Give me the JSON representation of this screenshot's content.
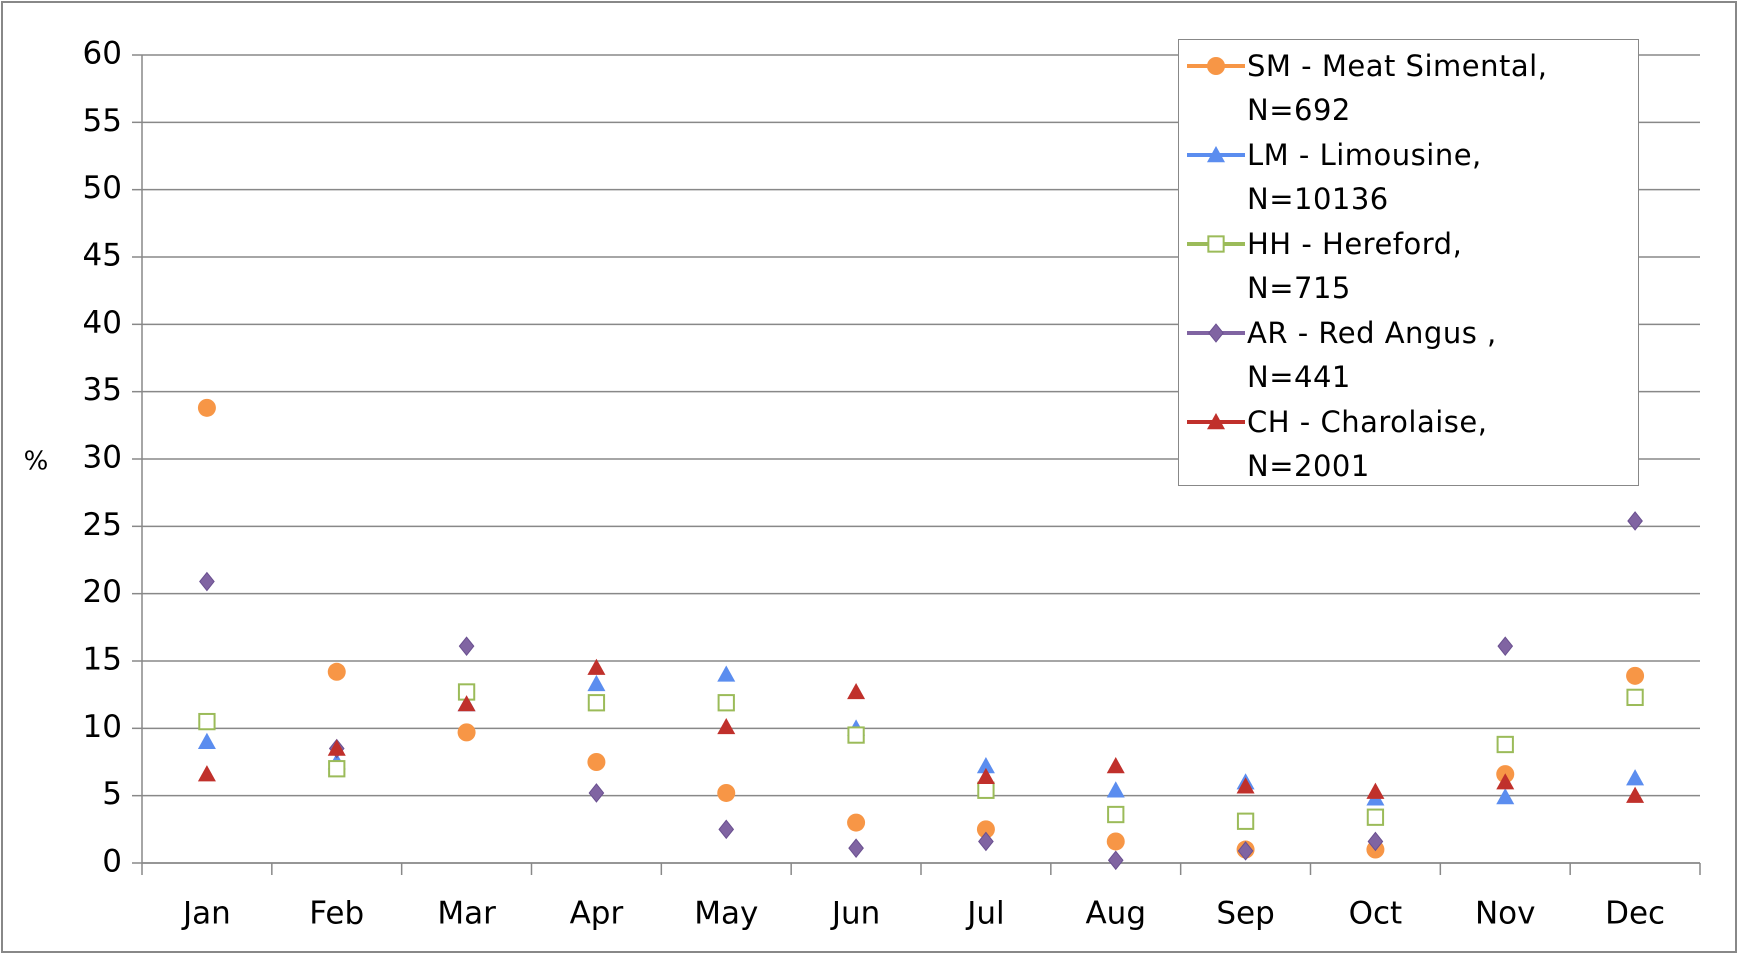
{
  "chart_data": {
    "type": "line",
    "y_label": "%",
    "categories": [
      "Jan",
      "Feb",
      "Mar",
      "Apr",
      "May",
      "Jun",
      "Jul",
      "Aug",
      "Sep",
      "Oct",
      "Nov",
      "Dec"
    ],
    "ylim": [
      0,
      60
    ],
    "yticks": [
      0,
      5,
      10,
      15,
      20,
      25,
      30,
      35,
      40,
      45,
      50,
      55,
      60
    ],
    "grid": true,
    "legend": "top-right",
    "series": [
      {
        "name": "SM - Meat Simental, N=692",
        "color": "#f79646",
        "marker": "circle",
        "values": [
          33.8,
          14.2,
          9.7,
          7.5,
          5.2,
          3.0,
          2.5,
          1.6,
          1.0,
          1.0,
          6.6,
          13.9
        ]
      },
      {
        "name": "LM - Limousine, N=10136",
        "color": "#5b8def",
        "marker": "triangle",
        "values": [
          9.0,
          7.5,
          11.8,
          13.3,
          14.0,
          10.0,
          7.2,
          5.4,
          6.0,
          4.8,
          4.9,
          6.3
        ]
      },
      {
        "name": "HH - Hereford, N=715",
        "color": "#9bbb59",
        "marker": "square-open",
        "values": [
          10.5,
          7.0,
          12.7,
          11.9,
          11.9,
          9.5,
          5.4,
          3.6,
          3.1,
          3.4,
          8.8,
          12.3
        ]
      },
      {
        "name": "AR - Red Angus , N=441",
        "color": "#8064a2",
        "marker": "diamond",
        "values": [
          20.9,
          8.5,
          16.1,
          5.2,
          2.5,
          1.1,
          1.6,
          0.2,
          0.9,
          1.6,
          16.1,
          25.4
        ]
      },
      {
        "name": "CH - Charolaise, N=2001",
        "color": "#c0302b",
        "marker": "triangle",
        "values": [
          6.6,
          8.5,
          11.8,
          14.5,
          10.1,
          12.7,
          6.4,
          7.2,
          5.7,
          5.3,
          6.0,
          5.0
        ]
      }
    ]
  }
}
